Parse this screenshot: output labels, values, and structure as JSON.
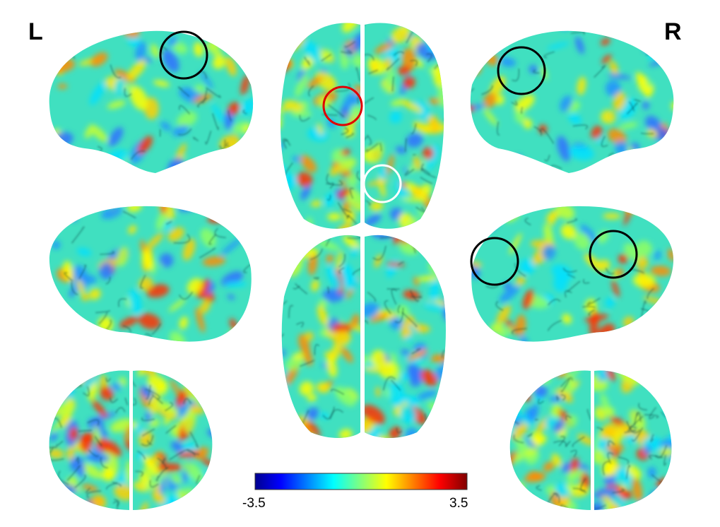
{
  "labels": {
    "left": "L",
    "right": "R"
  },
  "colorbar": {
    "min_label": "-3.5",
    "max_label": "3.5",
    "min": -3.5,
    "max": 3.5,
    "colormap": [
      "#00008f",
      "#0000ff",
      "#00ffff",
      "#ffff00",
      "#ff0000",
      "#800000"
    ]
  },
  "highlight_colors": {
    "black": "#000000",
    "red": "#e00000",
    "white": "#ffffff"
  }
}
